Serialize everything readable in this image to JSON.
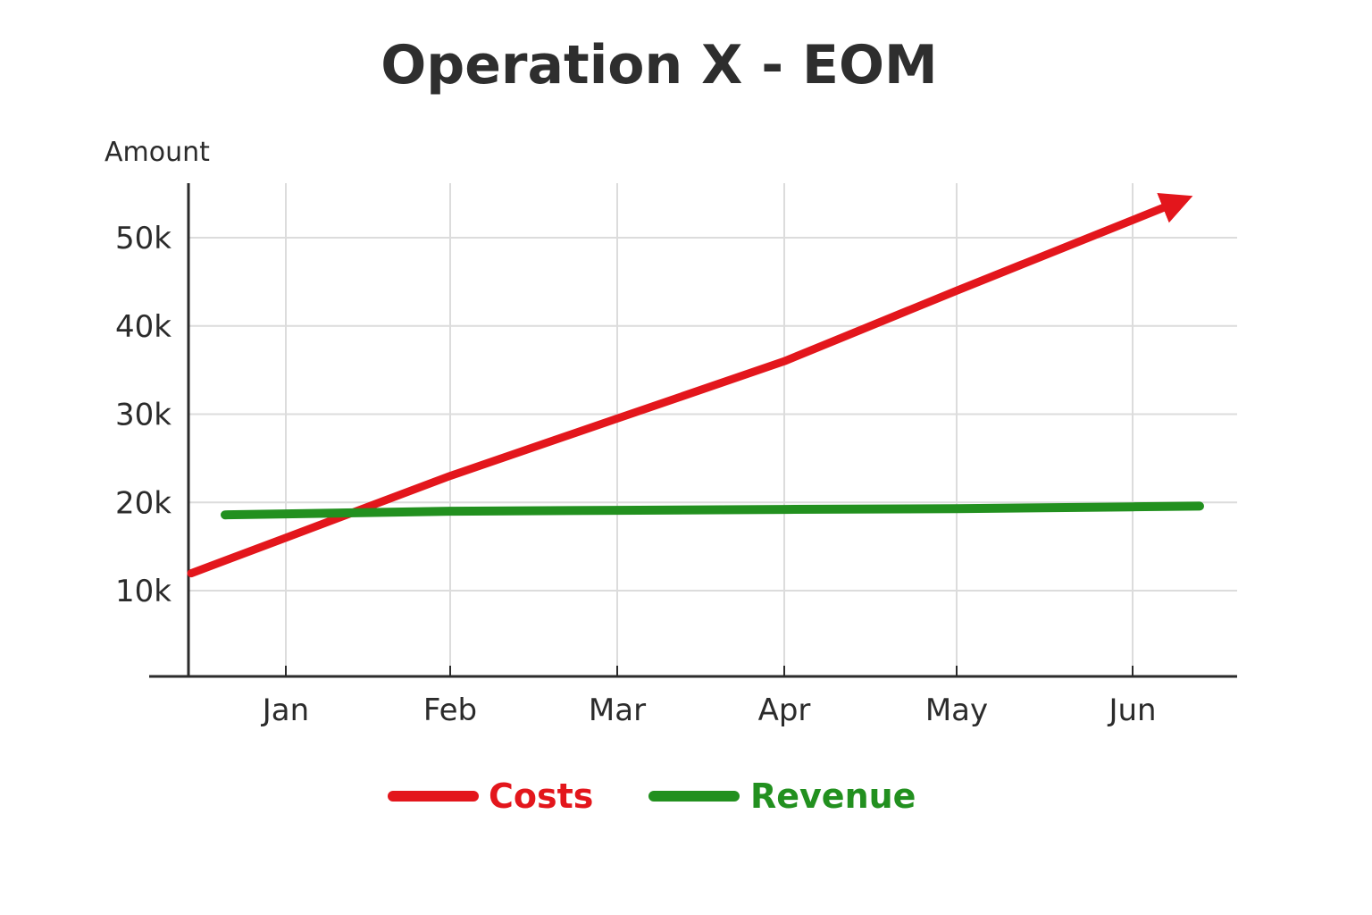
{
  "chart_data": {
    "type": "line",
    "title": "Operation X - EOM",
    "xlabel": "",
    "ylabel": "Amount",
    "categories": [
      "Jan",
      "Feb",
      "Mar",
      "Apr",
      "May",
      "Jun"
    ],
    "y_ticks": [
      {
        "value": 10000,
        "label": "10k"
      },
      {
        "value": 20000,
        "label": "20k"
      },
      {
        "value": 30000,
        "label": "30k"
      },
      {
        "value": 40000,
        "label": "40k"
      },
      {
        "value": 50000,
        "label": "50k"
      }
    ],
    "ylim": [
      0,
      55000
    ],
    "grid": true,
    "legend_position": "bottom-center",
    "series": [
      {
        "name": "Costs",
        "color": "#e3161c",
        "values": [
          16000,
          23000,
          29500,
          36000,
          44000,
          52000
        ]
      },
      {
        "name": "Revenue",
        "color": "#22901f",
        "values": [
          18700,
          19000,
          19100,
          19200,
          19300,
          19500
        ]
      }
    ]
  }
}
